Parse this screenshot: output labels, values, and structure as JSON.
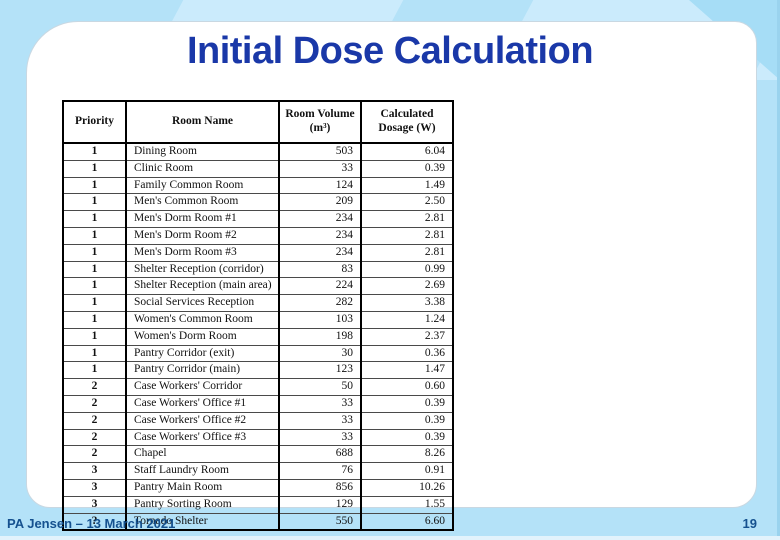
{
  "slide": {
    "title": "Initial Dose Calculation",
    "footer_left": "PA Jensen – 13 March 2021",
    "page_number": "19",
    "colors": {
      "background": "#b4e2f8",
      "panel": "#ffffff",
      "title_text": "#1a38a8",
      "footer_text": "#15518f"
    }
  },
  "table": {
    "columns": [
      "Priority",
      "Room Name",
      "Room Volume (m³)",
      "Calculated Dosage (W)"
    ],
    "rows": [
      {
        "priority": "1",
        "room": "Dining Room",
        "volume": "503",
        "dosage": "6.04"
      },
      {
        "priority": "1",
        "room": "Clinic Room",
        "volume": "33",
        "dosage": "0.39"
      },
      {
        "priority": "1",
        "room": "Family Common Room",
        "volume": "124",
        "dosage": "1.49"
      },
      {
        "priority": "1",
        "room": "Men's Common Room",
        "volume": "209",
        "dosage": "2.50"
      },
      {
        "priority": "1",
        "room": "Men's Dorm Room #1",
        "volume": "234",
        "dosage": "2.81"
      },
      {
        "priority": "1",
        "room": "Men's Dorm Room #2",
        "volume": "234",
        "dosage": "2.81"
      },
      {
        "priority": "1",
        "room": "Men's Dorm Room #3",
        "volume": "234",
        "dosage": "2.81"
      },
      {
        "priority": "1",
        "room": "Shelter Reception (corridor)",
        "volume": "83",
        "dosage": "0.99"
      },
      {
        "priority": "1",
        "room": "Shelter Reception (main area)",
        "volume": "224",
        "dosage": "2.69"
      },
      {
        "priority": "1",
        "room": "Social Services Reception",
        "volume": "282",
        "dosage": "3.38"
      },
      {
        "priority": "1",
        "room": "Women's Common Room",
        "volume": "103",
        "dosage": "1.24"
      },
      {
        "priority": "1",
        "room": "Women's Dorm Room",
        "volume": "198",
        "dosage": "2.37"
      },
      {
        "priority": "1",
        "room": "Pantry Corridor (exit)",
        "volume": "30",
        "dosage": "0.36"
      },
      {
        "priority": "1",
        "room": "Pantry Corridor (main)",
        "volume": "123",
        "dosage": "1.47"
      },
      {
        "priority": "2",
        "room": "Case Workers' Corridor",
        "volume": "50",
        "dosage": "0.60"
      },
      {
        "priority": "2",
        "room": "Case Workers' Office #1",
        "volume": "33",
        "dosage": "0.39"
      },
      {
        "priority": "2",
        "room": "Case Workers' Office #2",
        "volume": "33",
        "dosage": "0.39"
      },
      {
        "priority": "2",
        "room": "Case Workers' Office #3",
        "volume": "33",
        "dosage": "0.39"
      },
      {
        "priority": "2",
        "room": "Chapel",
        "volume": "688",
        "dosage": "8.26"
      },
      {
        "priority": "3",
        "room": "Staff Laundry Room",
        "volume": "76",
        "dosage": "0.91"
      },
      {
        "priority": "3",
        "room": "Pantry Main Room",
        "volume": "856",
        "dosage": "10.26"
      },
      {
        "priority": "3",
        "room": "Pantry Sorting Room",
        "volume": "129",
        "dosage": "1.55"
      },
      {
        "priority": "?",
        "room": "Tornado Shelter",
        "volume": "550",
        "dosage": "6.60"
      }
    ]
  }
}
